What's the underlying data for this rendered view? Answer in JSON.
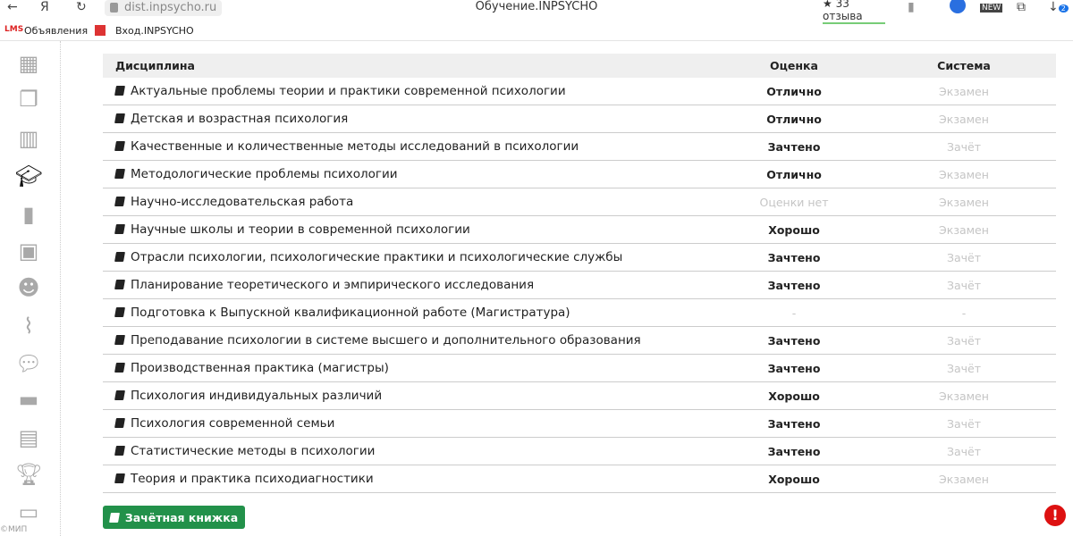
{
  "browser": {
    "url": "dist.inpsycho.ru",
    "title": "Обучение.INPSYCHO",
    "reviews": "★ 33 отзыва",
    "download_badge": "2",
    "new_badge": "NEW"
  },
  "bookmarks": [
    {
      "icon": "LMS",
      "label": "Объявления"
    },
    {
      "label": "Вход.INPSYCHO"
    }
  ],
  "sidebar": {
    "icons": [
      "grid-icon",
      "documents-icon",
      "calendar-icon",
      "graduation-cap-icon",
      "bookmark-icon",
      "video-file-icon",
      "users-icon",
      "paperclip-icon",
      "chat-icon",
      "folder-icon",
      "archive-icon",
      "trophy-icon",
      "credit-card-icon"
    ],
    "active": "graduation-cap-icon",
    "copyright": "©МИП"
  },
  "table": {
    "headers": [
      "Дисциплина",
      "Оценка",
      "Система"
    ],
    "rows": [
      [
        "Актуальные проблемы теории и практики современной психологии",
        "Отлично",
        "Экзамен"
      ],
      [
        "Детская и возрастная психология",
        "Отлично",
        "Экзамен"
      ],
      [
        "Качественные и количественные методы исследований в психологии",
        "Зачтено",
        "Зачёт"
      ],
      [
        "Методологические проблемы психологии",
        "Отлично",
        "Экзамен"
      ],
      [
        "Научно-исследовательская работа",
        "Оценки нет",
        "Экзамен"
      ],
      [
        "Научные школы и теории в современной психологии",
        "Хорошо",
        "Экзамен"
      ],
      [
        "Отрасли психологии, психологические практики и психологические службы",
        "Зачтено",
        "Зачёт"
      ],
      [
        "Планирование теоретического и эмпирического исследования",
        "Зачтено",
        "Зачёт"
      ],
      [
        "Подготовка к Выпускной квалификационной работе (Магистратура)",
        "-",
        "-"
      ],
      [
        "Преподавание психологии в системе высшего и дополнительного образования",
        "Зачтено",
        "Зачёт"
      ],
      [
        "Производственная практика (магистры)",
        "Зачтено",
        "Зачёт"
      ],
      [
        "Психология индивидуальных различий",
        "Хорошо",
        "Экзамен"
      ],
      [
        "Психология современной семьи",
        "Зачтено",
        "Зачёт"
      ],
      [
        "Статистические методы в психологии",
        "Зачтено",
        "Зачёт"
      ],
      [
        "Теория и практика психодиагностики",
        "Хорошо",
        "Экзамен"
      ]
    ]
  },
  "gradebook_button": "Зачётная книжка",
  "alert": "!",
  "colors": {
    "accent": "#22914a",
    "alert": "#dd1111"
  }
}
